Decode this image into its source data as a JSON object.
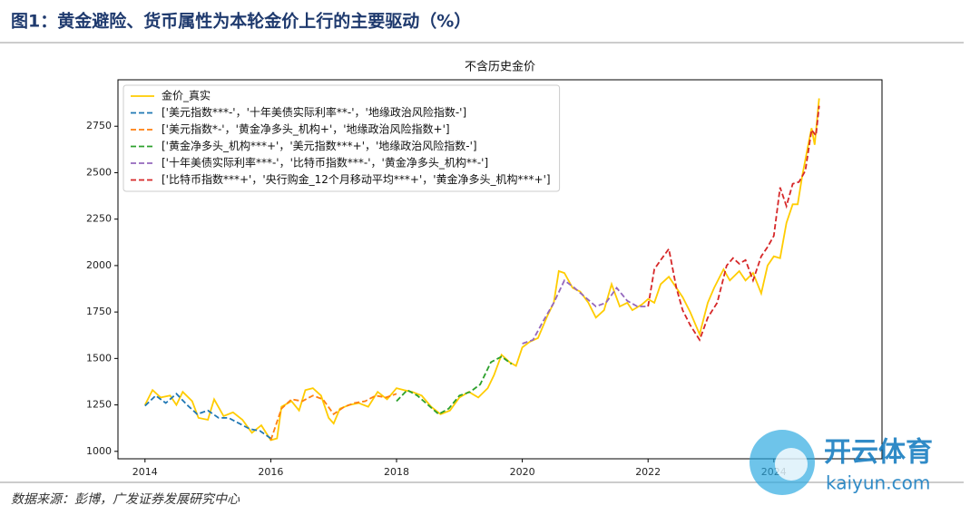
{
  "header": {
    "title": "图1：黄金避险、货币属性为本轮金价上行的主要驱动（%）"
  },
  "chart_data": {
    "type": "line",
    "title": "不含历史金价",
    "xlim": [
      2013.57,
      2025.72
    ],
    "xticks": [
      2014,
      2016,
      2018,
      2020,
      2022,
      2024
    ],
    "ylim": [
      960,
      3000
    ],
    "yticks": [
      1000,
      1250,
      1500,
      1750,
      2000,
      2250,
      2500,
      2750
    ],
    "legend": "upper left",
    "series": [
      {
        "name": "金价_真实",
        "color": "#ffcc00",
        "style": "solid",
        "x": [
          2014.0,
          2014.12,
          2014.25,
          2014.4,
          2014.5,
          2014.6,
          2014.75,
          2014.85,
          2015.0,
          2015.1,
          2015.25,
          2015.4,
          2015.55,
          2015.7,
          2015.85,
          2016.0,
          2016.1,
          2016.17,
          2016.33,
          2016.45,
          2016.55,
          2016.67,
          2016.8,
          2016.92,
          2017.0,
          2017.1,
          2017.25,
          2017.4,
          2017.55,
          2017.7,
          2017.85,
          2018.0,
          2018.12,
          2018.25,
          2018.4,
          2018.55,
          2018.7,
          2018.85,
          2019.0,
          2019.15,
          2019.3,
          2019.45,
          2019.55,
          2019.67,
          2019.8,
          2019.9,
          2020.0,
          2020.12,
          2020.25,
          2020.4,
          2020.5,
          2020.58,
          2020.67,
          2020.8,
          2020.92,
          2021.05,
          2021.17,
          2021.3,
          2021.42,
          2021.55,
          2021.67,
          2021.75,
          2021.9,
          2022.0,
          2022.1,
          2022.2,
          2022.33,
          2022.45,
          2022.55,
          2022.67,
          2022.82,
          2022.95,
          2023.05,
          2023.2,
          2023.3,
          2023.45,
          2023.55,
          2023.67,
          2023.8,
          2023.9,
          2024.0,
          2024.1,
          2024.2,
          2024.3,
          2024.38,
          2024.45,
          2024.53,
          2024.6,
          2024.65,
          2024.72
        ],
        "values": [
          1250,
          1330,
          1290,
          1300,
          1250,
          1320,
          1270,
          1180,
          1170,
          1280,
          1190,
          1210,
          1170,
          1100,
          1140,
          1060,
          1070,
          1240,
          1270,
          1220,
          1330,
          1340,
          1300,
          1180,
          1150,
          1230,
          1250,
          1260,
          1240,
          1320,
          1280,
          1340,
          1330,
          1320,
          1300,
          1240,
          1200,
          1220,
          1290,
          1320,
          1290,
          1340,
          1410,
          1520,
          1480,
          1460,
          1560,
          1590,
          1610,
          1730,
          1800,
          1970,
          1960,
          1880,
          1860,
          1800,
          1720,
          1760,
          1900,
          1780,
          1800,
          1760,
          1790,
          1820,
          1800,
          1900,
          1940,
          1880,
          1830,
          1750,
          1630,
          1800,
          1880,
          1980,
          1920,
          1970,
          1920,
          1960,
          1850,
          2000,
          2050,
          2040,
          2230,
          2330,
          2330,
          2480,
          2620,
          2740,
          2650,
          2900
        ]
      },
      {
        "name": "['美元指数***-'，'十年美债实际利率**-'，'地缘政治风险指数-']",
        "color": "#1f77b4",
        "style": "dashed",
        "x": [
          2014.0,
          2014.17,
          2014.33,
          2014.5,
          2014.67,
          2014.83,
          2015.0,
          2015.17,
          2015.33,
          2015.5,
          2015.67,
          2015.83,
          2016.0
        ],
        "values": [
          1245,
          1300,
          1260,
          1310,
          1250,
          1200,
          1220,
          1180,
          1180,
          1150,
          1120,
          1110,
          1070
        ]
      },
      {
        "name": "['美元指数*-'，'黄金净多头_机构+'，'地缘政治风险指数+']",
        "color": "#ff7f0e",
        "style": "dashed",
        "x": [
          2016.0,
          2016.17,
          2016.33,
          2016.5,
          2016.67,
          2016.83,
          2017.0,
          2017.17,
          2017.33,
          2017.5,
          2017.67,
          2017.83,
          2018.0
        ],
        "values": [
          1060,
          1230,
          1280,
          1270,
          1300,
          1280,
          1200,
          1240,
          1260,
          1270,
          1300,
          1290,
          1310
        ]
      },
      {
        "name": "['黄金净多头_机构***+'，'美元指数***+'，'地缘政治风险指数-']",
        "color": "#2ca02c",
        "style": "dashed",
        "x": [
          2018.0,
          2018.17,
          2018.33,
          2018.5,
          2018.67,
          2018.83,
          2019.0,
          2019.17,
          2019.33,
          2019.5,
          2019.67,
          2019.83
        ],
        "values": [
          1270,
          1330,
          1300,
          1250,
          1200,
          1230,
          1300,
          1320,
          1360,
          1480,
          1510,
          1470
        ]
      },
      {
        "name": "['十年美债实际利率***-'，'比特币指数***-'，'黄金净多头_机构**-']",
        "color": "#9467bd",
        "style": "dashed",
        "x": [
          2020.0,
          2020.17,
          2020.33,
          2020.5,
          2020.67,
          2020.83,
          2021.0,
          2021.17,
          2021.33,
          2021.5,
          2021.67,
          2021.83,
          2022.0
        ],
        "values": [
          1580,
          1600,
          1700,
          1800,
          1920,
          1880,
          1830,
          1780,
          1800,
          1880,
          1810,
          1780,
          1780
        ]
      },
      {
        "name": "['比特币指数***+'，'央行购金_12个月移动平均***+'，'黄金净多头_机构***+']",
        "color": "#d62728",
        "style": "dashed",
        "x": [
          2022.0,
          2022.1,
          2022.2,
          2022.33,
          2022.45,
          2022.55,
          2022.67,
          2022.82,
          2022.95,
          2023.1,
          2023.25,
          2023.35,
          2023.45,
          2023.55,
          2023.67,
          2023.8,
          2023.9,
          2024.0,
          2024.1,
          2024.2,
          2024.3,
          2024.4,
          2024.5,
          2024.6,
          2024.67,
          2024.72
        ],
        "values": [
          1780,
          1980,
          2030,
          2090,
          1880,
          1760,
          1680,
          1600,
          1720,
          1800,
          2000,
          2040,
          2010,
          2030,
          1920,
          2050,
          2100,
          2160,
          2420,
          2320,
          2440,
          2450,
          2510,
          2730,
          2700,
          2860
        ]
      }
    ]
  },
  "footer": {
    "source": "数据来源：彭博，广发证券发展研究中心"
  },
  "watermark": {
    "brand": "开云体育",
    "site": "kaiyun.com"
  }
}
